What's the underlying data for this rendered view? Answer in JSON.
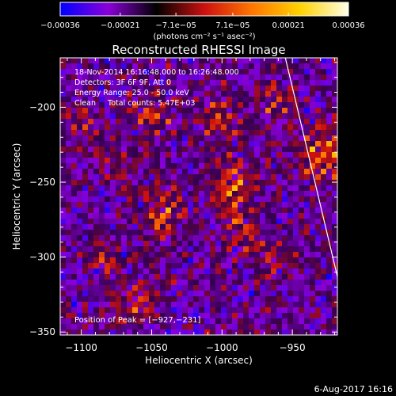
{
  "chart_data": {
    "type": "heatmap",
    "title": "Reconstructed RHESSI Image",
    "xlabel": "Heliocentric X (arcsec)",
    "ylabel": "Heliocentric Y (arcsec)",
    "xlim": [
      -1115,
      -918
    ],
    "ylim": [
      -352,
      -167
    ],
    "x_ticks": [
      -1100,
      -1050,
      -1000,
      -950
    ],
    "x_tick_labels": [
      "−1100",
      "−1050",
      "−1000",
      "−950"
    ],
    "y_ticks": [
      -200,
      -250,
      -300,
      -350
    ],
    "y_tick_labels": [
      "−200",
      "−250",
      "−300",
      "−350"
    ],
    "annotations": [
      "18-Nov-2014 16:16:48.000 to 16:26:48.000",
      "Detectors: 3F 6F 9F, Att 0",
      "Energy Range: 25.0 - 50.0 keV",
      "Clean     Total counts: 5.47E+03"
    ],
    "peak_label": "Position of Peak = [−927,−231]",
    "peak_position": [
      -927,
      -231
    ],
    "limb_line": {
      "x": [
        -955,
        -918
      ],
      "y": [
        -167,
        -313
      ]
    },
    "colorbar": {
      "range": [
        -0.00036,
        0.00036
      ],
      "tick_values": [
        -0.00036,
        -0.00021,
        -7.1e-05,
        7.1e-05,
        0.00021,
        0.00036
      ],
      "tick_labels": [
        "−0.00036",
        "−0.00021",
        "−7.1e−05",
        "7.1e−05",
        "0.00021",
        "0.00036"
      ],
      "units_label": "(photons cm⁻² s⁻¹ asec⁻²)",
      "colors": [
        "#0000ff",
        "#8a00d8",
        "#000000",
        "#cc1010",
        "#ff7700",
        "#ffd200",
        "#ffffe8"
      ]
    },
    "footer_date": "6-Aug-2017 16:16",
    "colors": {
      "background": "#000000",
      "axes": "#ffffff",
      "text": "#ffffff"
    }
  }
}
